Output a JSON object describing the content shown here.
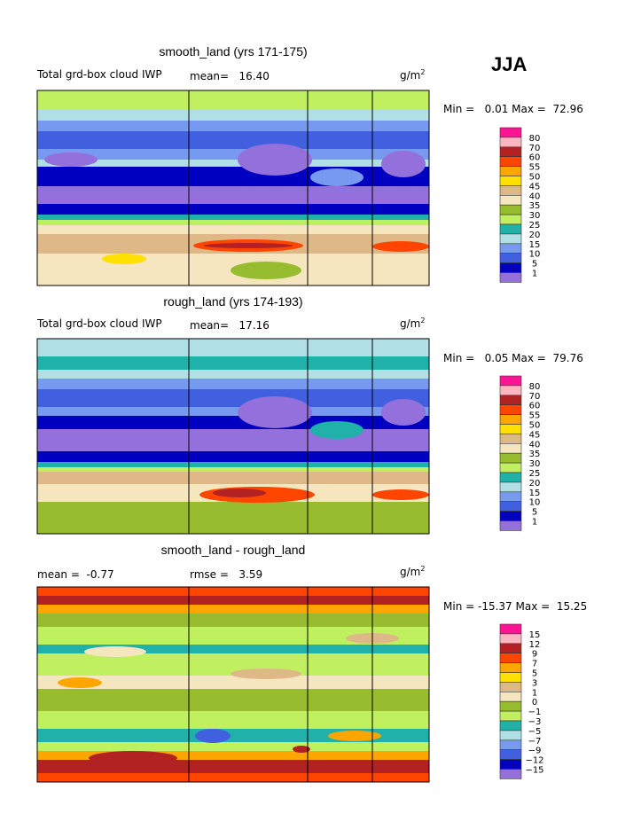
{
  "season": "JJA",
  "units": "g/m",
  "units_sup": "2",
  "chart_data": [
    {
      "type": "heatmap",
      "title": "smooth_land (yrs 171-175)",
      "field_label": "Total grd-box cloud IWP",
      "mean_label": "mean=",
      "mean": "16.40",
      "min_label": "Min =",
      "min": "0.01",
      "max_label": "Max =",
      "max": "72.96",
      "levels": [
        "80",
        "70",
        "60",
        "55",
        "50",
        "45",
        "40",
        "35",
        "30",
        "25",
        "20",
        "15",
        "10",
        "5",
        "1"
      ],
      "colors": [
        "#ff1493",
        "#ffb6c1",
        "#b22222",
        "#ff4500",
        "#ffa500",
        "#ffe000",
        "#deb887",
        "#f5e6c0",
        "#98bc30",
        "#c0f060",
        "#20b2aa",
        "#b0e0e6",
        "#7799f0",
        "#4060e0",
        "#0000c0",
        "#9370db"
      ]
    },
    {
      "type": "heatmap",
      "title": "rough_land (yrs 174-193)",
      "field_label": "Total grd-box cloud IWP",
      "mean_label": "mean=",
      "mean": "17.16",
      "min_label": "Min =",
      "min": "0.05",
      "max_label": "Max =",
      "max": "79.76",
      "levels": [
        "80",
        "70",
        "60",
        "55",
        "50",
        "45",
        "40",
        "35",
        "30",
        "25",
        "20",
        "15",
        "10",
        "5",
        "1"
      ],
      "colors": [
        "#ff1493",
        "#ffb6c1",
        "#b22222",
        "#ff4500",
        "#ffa500",
        "#ffe000",
        "#deb887",
        "#f5e6c0",
        "#98bc30",
        "#c0f060",
        "#20b2aa",
        "#b0e0e6",
        "#7799f0",
        "#4060e0",
        "#0000c0",
        "#9370db"
      ]
    },
    {
      "type": "heatmap",
      "title": "smooth_land - rough_land",
      "mean_label": "mean =",
      "mean": "-0.77",
      "rmse_label": "rmse =",
      "rmse": "3.59",
      "min_label": "Min =",
      "min": "-15.37",
      "max_label": "Max =",
      "max": "15.25",
      "levels": [
        "15",
        "12",
        "9",
        "7",
        "5",
        "3",
        "1",
        "0",
        "−1",
        "−3",
        "−5",
        "−7",
        "−9",
        "−12",
        "−15"
      ],
      "colors": [
        "#ff1493",
        "#ffb6c1",
        "#b22222",
        "#ff4500",
        "#ffa500",
        "#ffe000",
        "#deb887",
        "#f5e6c0",
        "#98bc30",
        "#c0f060",
        "#20b2aa",
        "#b0e0e6",
        "#7799f0",
        "#4060e0",
        "#0000c0",
        "#9370db"
      ]
    }
  ]
}
